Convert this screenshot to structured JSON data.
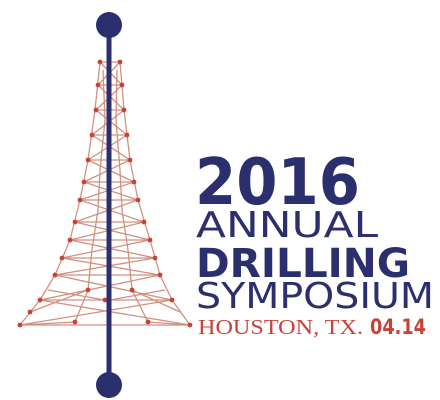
{
  "logo": {
    "year": "2016",
    "line1": "ANNUAL",
    "line2": "DRILLING",
    "line3": "SYMPOSIUM",
    "location": "HOUSTON, TX.",
    "date": "04.14",
    "colors": {
      "navy": "#2b2f6e",
      "red": "#c8423a",
      "lattice": "#d2917f"
    }
  }
}
